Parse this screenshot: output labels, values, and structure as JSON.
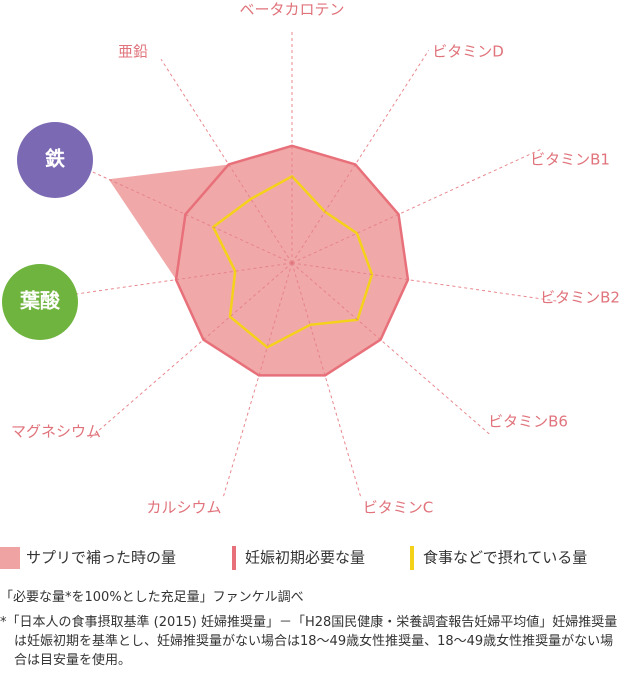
{
  "chart_data": {
    "type": "radar",
    "categories": [
      "ベータカロテン",
      "ビタミンD",
      "ビタミンB1",
      "ビタミンB2",
      "ビタミンB6",
      "ビタミンC",
      "カルシウム",
      "マグネシウム",
      "葉酸",
      "鉄",
      "亜鉛"
    ],
    "category_badge_colors": [
      null,
      null,
      null,
      null,
      null,
      null,
      null,
      null,
      "#6fb43f",
      "#7b6ab3",
      null
    ],
    "rlim": [
      0,
      175
    ],
    "series": [
      {
        "name": "サプリで補った時の量",
        "color": "#f0a3a3",
        "fill": true,
        "values": [
          100,
          100,
          100,
          100,
          100,
          100,
          100,
          100,
          100,
          172,
          100
        ]
      },
      {
        "name": "妊娠初期必要な量",
        "color": "#e8707a",
        "values": [
          100,
          100,
          100,
          100,
          100,
          100,
          100,
          100,
          100,
          100,
          100
        ]
      },
      {
        "name": "食事などで摂れている量",
        "color": "#f5d21a",
        "values": [
          74,
          52,
          61,
          69,
          74,
          55,
          75,
          70,
          49,
          74,
          65
        ]
      }
    ],
    "notes": [
      "「必要な量*を100%とした充足量」ファンケル調べ",
      "*「日本人の食事摂取基準 (2015) 妊婦推奨量」－「H28国民健康・栄養調査報告妊婦平均値」妊婦推奨量は妊娠初期を基準とし、妊婦推奨量がない場合は18〜49歳女性推奨量、18〜49歳女性推奨量がない場合は目安量を使用。"
    ]
  }
}
